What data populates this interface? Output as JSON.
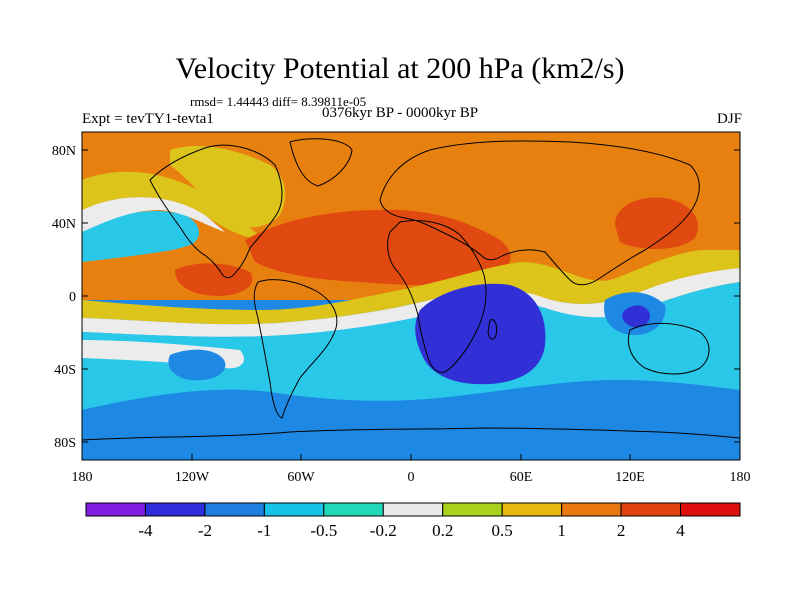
{
  "title": "Velocity Potential at 200 hPa (km2/s)",
  "stats": "rmsd= 1.44443 diff= 8.39811e-05",
  "experiment": "Expt = tevTY1-tevta1",
  "period": "0376kyr BP - 0000kyr BP",
  "season": "DJF",
  "lat_labels": [
    "80N",
    "40N",
    "0",
    "40S",
    "80S"
  ],
  "lon_labels": [
    "180",
    "120W",
    "60W",
    "0",
    "60E",
    "120E",
    "180"
  ],
  "colorbar": {
    "labels": [
      "-4",
      "-2",
      "-1",
      "-0.5",
      "-0.2",
      "0.2",
      "0.5",
      "1",
      "2",
      "4"
    ],
    "colors": [
      "#7f1ee0",
      "#2e2edb",
      "#1e7fe0",
      "#19c3e8",
      "#22d8b8",
      "#e8e8e8",
      "#a8d21e",
      "#e8b80f",
      "#e8780f",
      "#e0420f",
      "#e00f0f"
    ]
  },
  "palette": {
    "strong_negative": "#3030d6",
    "negative": "#1e88e5",
    "weak_negative": "#29c8e8",
    "neutral": "#ececec",
    "weak_positive": "#dcc41a",
    "positive": "#e8800f",
    "strong_positive": "#e04a10"
  }
}
